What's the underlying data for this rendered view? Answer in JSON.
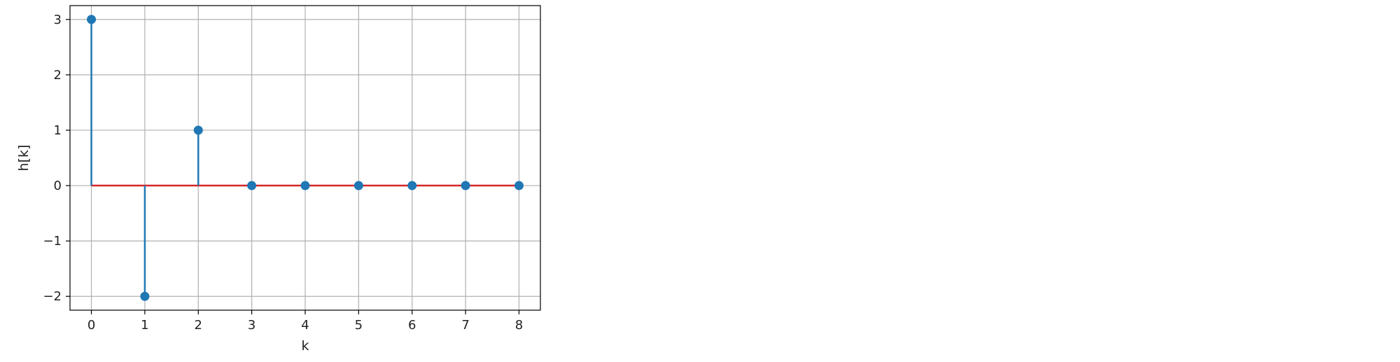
{
  "chart_data": {
    "type": "stem",
    "title": "",
    "xlabel": "k",
    "ylabel": "h[k]",
    "x": [
      0,
      1,
      2,
      3,
      4,
      5,
      6,
      7,
      8
    ],
    "y": [
      3,
      -2,
      1,
      0,
      0,
      0,
      0,
      0,
      0
    ],
    "xlim": [
      -0.4,
      8.4
    ],
    "ylim": [
      -2.25,
      3.25
    ],
    "xticks": [
      0,
      1,
      2,
      3,
      4,
      5,
      6,
      7,
      8
    ],
    "yticks": [
      -2,
      -1,
      0,
      1,
      2,
      3
    ],
    "xtick_labels": [
      "0",
      "1",
      "2",
      "3",
      "4",
      "5",
      "6",
      "7",
      "8"
    ],
    "ytick_labels": [
      "−2",
      "−1",
      "0",
      "1",
      "2",
      "3"
    ],
    "grid": true,
    "colors": {
      "stem": "#1f77b4",
      "baseline": "#d62728",
      "grid": "#b0b0b0",
      "axes": "#000000"
    }
  }
}
